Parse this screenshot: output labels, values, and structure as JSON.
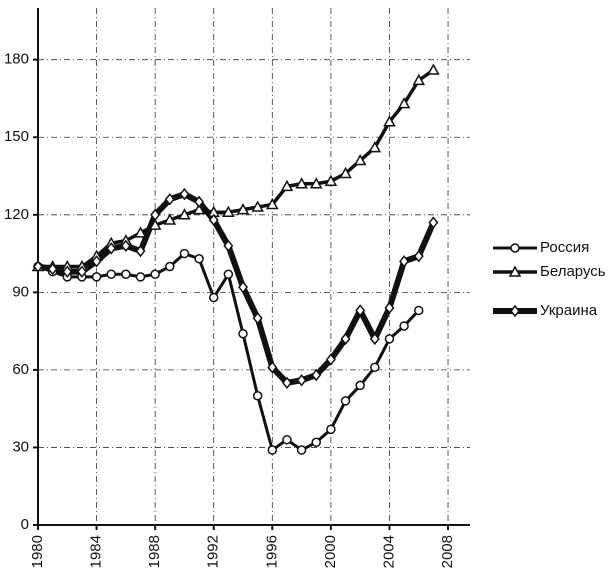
{
  "chart_data": {
    "type": "line",
    "x": [
      1980,
      1981,
      1982,
      1983,
      1984,
      1985,
      1986,
      1987,
      1988,
      1989,
      1990,
      1991,
      1992,
      1993,
      1994,
      1995,
      1996,
      1997,
      1998,
      1999,
      2000,
      2001,
      2002,
      2003,
      2004,
      2005,
      2006,
      2007
    ],
    "series": [
      {
        "name": "Россия",
        "color": "#111111",
        "marker": "circle",
        "values": [
          100,
          98,
          96,
          96,
          96,
          97,
          97,
          96,
          97,
          100,
          105,
          103,
          88,
          97,
          74,
          50,
          29,
          33,
          29,
          32,
          37,
          48,
          54,
          61,
          72,
          77,
          83,
          null
        ]
      },
      {
        "name": "Беларусь",
        "color": "#111111",
        "marker": "triangle",
        "values": [
          100,
          100,
          100,
          100,
          104,
          109,
          110,
          113,
          116,
          118,
          120,
          122,
          121,
          121,
          122,
          123,
          124,
          131,
          132,
          132,
          133,
          136,
          141,
          146,
          156,
          163,
          172,
          176
        ]
      },
      {
        "name": "Украина",
        "color": "#111111",
        "marker": "diamond",
        "values": [
          100,
          99,
          98,
          98,
          102,
          107,
          108,
          106,
          120,
          126,
          128,
          125,
          118,
          108,
          92,
          80,
          61,
          55,
          56,
          58,
          64,
          72,
          83,
          72,
          84,
          102,
          104,
          117
        ]
      }
    ],
    "xlim": [
      1980,
      2009.5
    ],
    "xticks": [
      1980,
      1984,
      1988,
      1992,
      1996,
      2000,
      2004,
      2008
    ],
    "ylim": [
      0,
      200
    ],
    "yticks": [
      0,
      30,
      60,
      90,
      120,
      150,
      180
    ],
    "grid": true,
    "legend": "right"
  }
}
